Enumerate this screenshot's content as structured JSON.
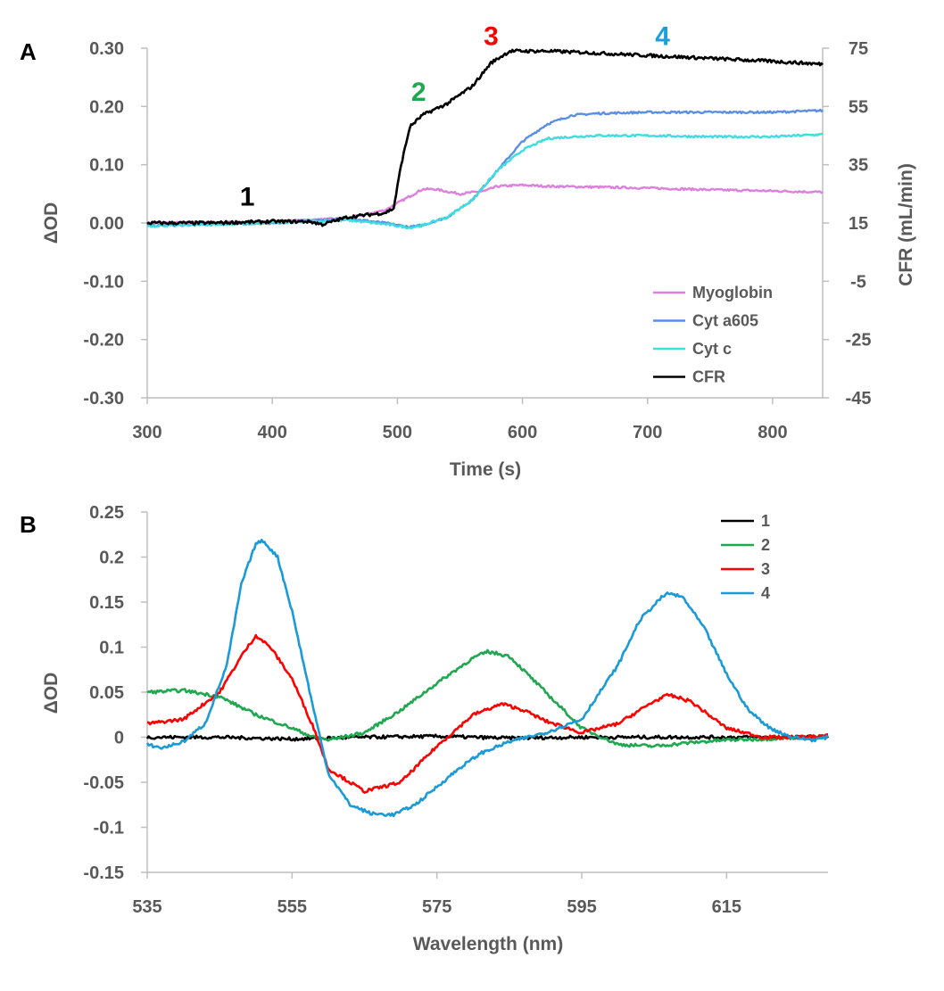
{
  "chart_data": [
    {
      "panel": "A",
      "type": "line",
      "xlabel": "Time (s)",
      "ylabel": "ΔOD",
      "y2label": "CFR (mL/min)",
      "xlim": [
        300,
        840
      ],
      "ylim": [
        -0.3,
        0.3
      ],
      "y2lim": [
        -45,
        75
      ],
      "xticks": [
        300,
        400,
        500,
        600,
        700,
        800
      ],
      "yticks": [
        "0.30",
        "0.20",
        "0.10",
        "0.00",
        "-0.10",
        "-0.20",
        "-0.30"
      ],
      "y2ticks": [
        "75",
        "55",
        "35",
        "15",
        "-5",
        "-25",
        "-45"
      ],
      "markers": [
        {
          "label": "1",
          "x": 380,
          "y": 0.03,
          "color": "#000000"
        },
        {
          "label": "2",
          "x": 517,
          "y": 0.21,
          "color": "#1fa84f"
        },
        {
          "label": "3",
          "x": 575,
          "y": 0.305,
          "color": "#ff0000"
        },
        {
          "label": "4",
          "x": 712,
          "y": 0.305,
          "color": "#1f9fd9"
        }
      ],
      "series": [
        {
          "name": "Myoglobin",
          "color": "#dd80dd",
          "axis": "left",
          "x": [
            300,
            400,
            460,
            490,
            505,
            520,
            530,
            550,
            570,
            580,
            600,
            620,
            650,
            700,
            750,
            800,
            840
          ],
          "y": [
            0.0,
            0.002,
            0.008,
            0.022,
            0.04,
            0.058,
            0.058,
            0.05,
            0.055,
            0.063,
            0.065,
            0.063,
            0.062,
            0.06,
            0.057,
            0.055,
            0.053
          ]
        },
        {
          "name": "Cyt a605",
          "color": "#5b8ee6",
          "axis": "left",
          "x": [
            300,
            400,
            460,
            490,
            510,
            520,
            540,
            560,
            580,
            600,
            620,
            640,
            660,
            700,
            750,
            800,
            840
          ],
          "y": [
            -0.005,
            0.0,
            0.008,
            0.0,
            -0.007,
            -0.004,
            0.01,
            0.04,
            0.09,
            0.14,
            0.17,
            0.185,
            0.188,
            0.19,
            0.19,
            0.19,
            0.193
          ]
        },
        {
          "name": "Cyt c",
          "color": "#3fdde0",
          "axis": "left",
          "x": [
            300,
            400,
            460,
            490,
            510,
            520,
            540,
            560,
            580,
            600,
            620,
            640,
            660,
            700,
            750,
            800,
            840
          ],
          "y": [
            -0.005,
            0.0,
            0.005,
            -0.002,
            -0.008,
            -0.004,
            0.01,
            0.04,
            0.09,
            0.125,
            0.145,
            0.148,
            0.15,
            0.15,
            0.148,
            0.148,
            0.152
          ]
        },
        {
          "name": "CFR",
          "color": "#000000",
          "axis": "right",
          "x": [
            300,
            350,
            400,
            430,
            440,
            460,
            490,
            497,
            503,
            510,
            520,
            540,
            560,
            575,
            590,
            620,
            650,
            700,
            750,
            800,
            840
          ],
          "y": [
            15,
            15,
            15.5,
            15.5,
            14.5,
            17,
            18.5,
            20,
            35,
            48,
            52,
            56,
            62,
            70,
            74,
            74,
            73.5,
            72.5,
            71.5,
            70.5,
            69.5
          ]
        }
      ]
    },
    {
      "panel": "B",
      "type": "line",
      "xlabel": "Wavelength (nm)",
      "ylabel": "ΔOD",
      "xlim": [
        535,
        629
      ],
      "ylim": [
        -0.15,
        0.25
      ],
      "xticks": [
        535,
        555,
        575,
        595,
        615
      ],
      "yticks": [
        "0.25",
        "0.2",
        "0.15",
        "0.1",
        "0.05",
        "0",
        "-0.05",
        "-0.1",
        "-0.15"
      ],
      "series": [
        {
          "name": "1",
          "color": "#000000",
          "x": [
            535,
            545,
            555,
            565,
            575,
            585,
            595,
            605,
            615,
            625,
            629
          ],
          "y": [
            0.0,
            0.0,
            -0.002,
            0.0,
            0.001,
            -0.001,
            0.0,
            0.0,
            0.0,
            0.0,
            0.0
          ]
        },
        {
          "name": "2",
          "color": "#1fa84f",
          "x": [
            535,
            540,
            545,
            550,
            555,
            558,
            560,
            565,
            570,
            575,
            580,
            582,
            585,
            590,
            595,
            600,
            605,
            610,
            615,
            620,
            625,
            629
          ],
          "y": [
            0.05,
            0.052,
            0.045,
            0.025,
            0.01,
            0.0,
            -0.003,
            0.005,
            0.03,
            0.06,
            0.088,
            0.095,
            0.09,
            0.05,
            0.01,
            -0.008,
            -0.01,
            -0.006,
            -0.003,
            -0.002,
            0.0,
            0.0
          ]
        },
        {
          "name": "3",
          "color": "#ff0000",
          "x": [
            535,
            540,
            545,
            548,
            550,
            552,
            555,
            558,
            560,
            565,
            570,
            575,
            580,
            584,
            587,
            590,
            595,
            600,
            605,
            607,
            610,
            615,
            620,
            625,
            629
          ],
          "y": [
            0.015,
            0.02,
            0.05,
            0.09,
            0.113,
            0.1,
            0.065,
            0.01,
            -0.035,
            -0.06,
            -0.05,
            -0.01,
            0.025,
            0.037,
            0.03,
            0.018,
            0.005,
            0.015,
            0.04,
            0.047,
            0.04,
            0.01,
            0.0,
            0.0,
            0.002
          ]
        },
        {
          "name": "4",
          "color": "#1a9ad6",
          "x": [
            535,
            537,
            540,
            543,
            546,
            548,
            550,
            551,
            553,
            555,
            558,
            560,
            563,
            566,
            569,
            572,
            575,
            578,
            581,
            585,
            590,
            595,
            600,
            603,
            606,
            607,
            609,
            612,
            615,
            618,
            621,
            624,
            627,
            629
          ],
          "y": [
            -0.008,
            -0.012,
            -0.005,
            0.015,
            0.08,
            0.17,
            0.215,
            0.218,
            0.2,
            0.14,
            0.03,
            -0.04,
            -0.075,
            -0.085,
            -0.086,
            -0.075,
            -0.055,
            -0.035,
            -0.018,
            -0.005,
            0.005,
            0.02,
            0.08,
            0.13,
            0.155,
            0.16,
            0.155,
            0.12,
            0.07,
            0.03,
            0.01,
            0.0,
            -0.003,
            0.0
          ]
        }
      ]
    }
  ],
  "labels": {
    "panel_a": "A",
    "panel_b": "B",
    "a_xlabel": "Time (s)",
    "a_ylabel": "ΔOD",
    "a_y2label": "CFR (mL/min)",
    "b_xlabel": "Wavelength (nm)",
    "b_ylabel": "ΔOD",
    "a_legend": [
      "Myoglobin",
      "Cyt a605",
      "Cyt c",
      "CFR"
    ],
    "b_legend": [
      "1",
      "2",
      "3",
      "4"
    ],
    "a_markers": [
      "1",
      "2",
      "3",
      "4"
    ]
  }
}
